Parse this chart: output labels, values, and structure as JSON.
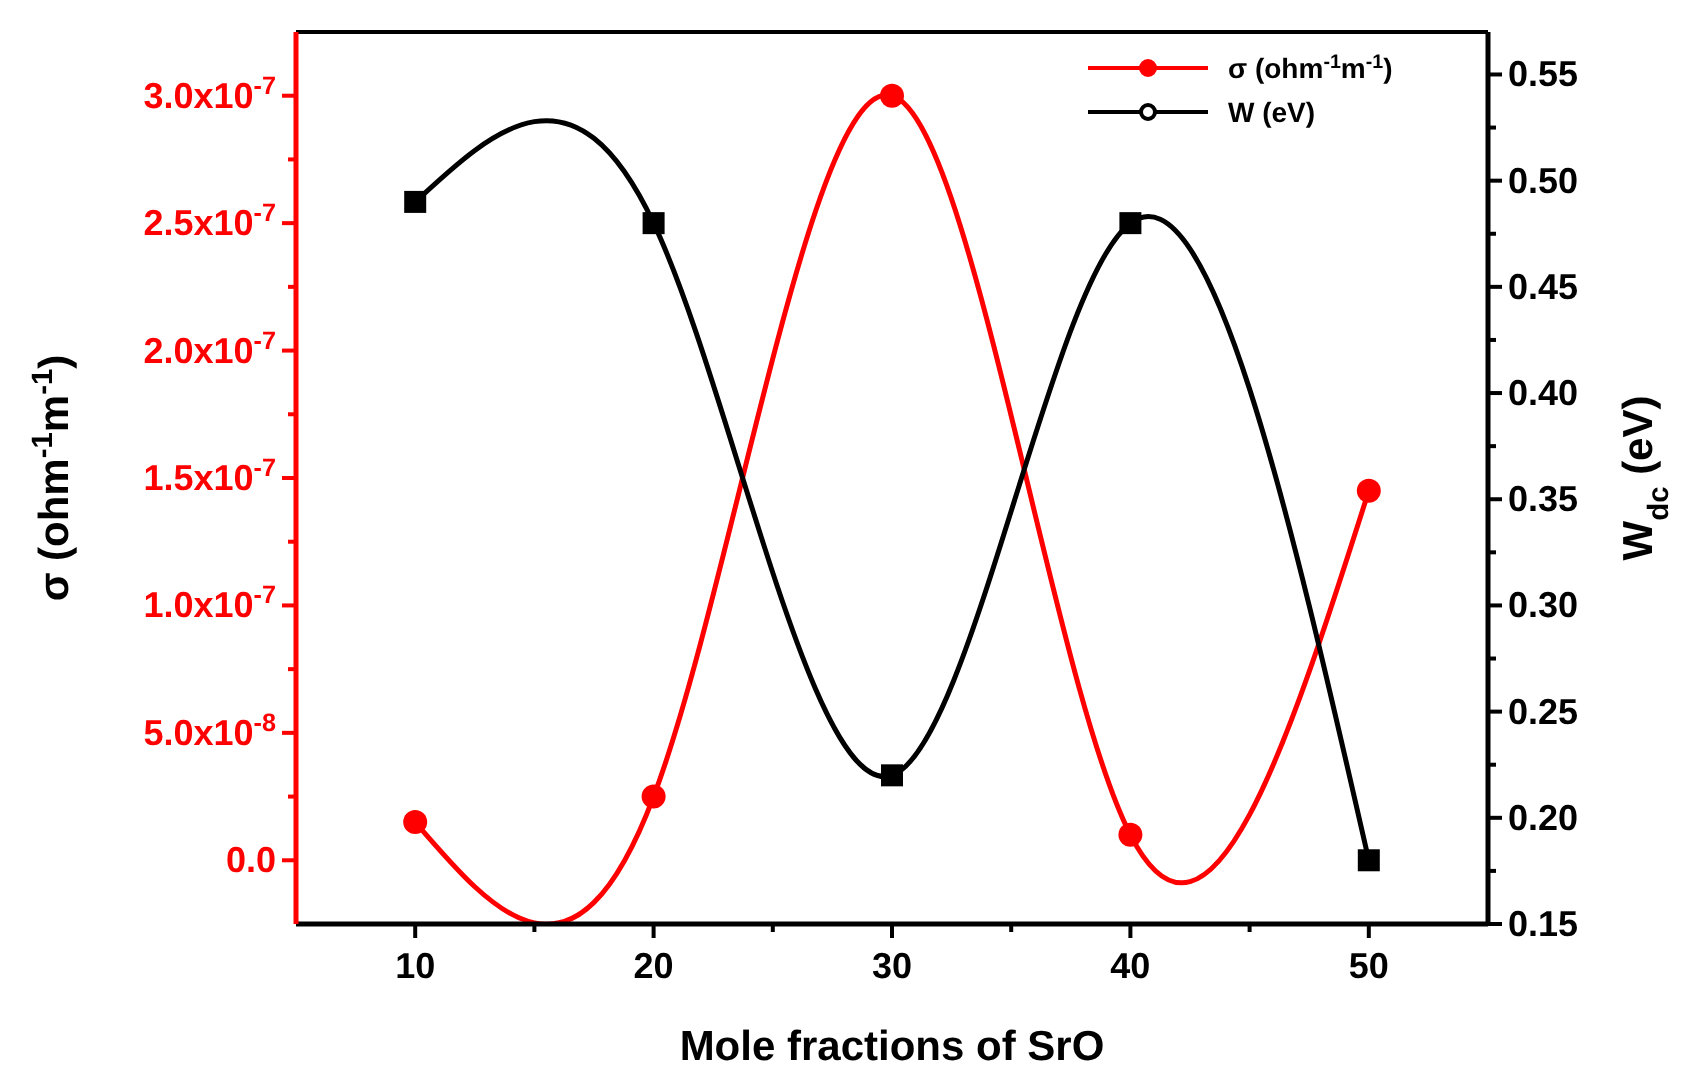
{
  "chart_data": {
    "type": "line",
    "xlabel": "Mole fractions of SrO",
    "ylabel": "σ (ohm$^{-1}$m$^{-1}$)",
    "y2label": "W$_{dc}$ (eV)",
    "x": [
      10,
      20,
      30,
      40,
      50
    ],
    "xlim": [
      5,
      55
    ],
    "xticks": [
      10,
      {
        "value": 15,
        "label": null
      },
      20,
      {
        "value": 25,
        "label": null
      },
      30,
      {
        "value": 35,
        "label": null
      },
      40,
      {
        "value": 45,
        "label": null
      },
      50
    ],
    "ylim": [
      -2.5e-08,
      3.25e-07
    ],
    "yticks": [
      {
        "value": 0,
        "label": "0.0"
      },
      {
        "value": 2.5e-08,
        "label": null
      },
      {
        "value": 5e-08,
        "label": "5.0x10$^{-8}$"
      },
      {
        "value": 7.5e-08,
        "label": null
      },
      {
        "value": 1e-07,
        "label": "1.0x10$^{-7}$"
      },
      {
        "value": 1.25e-07,
        "label": null
      },
      {
        "value": 1.5e-07,
        "label": "1.5x10$^{-7}$"
      },
      {
        "value": 1.75e-07,
        "label": null
      },
      {
        "value": 2e-07,
        "label": "2.0x10$^{-7}$"
      },
      {
        "value": 2.25e-07,
        "label": null
      },
      {
        "value": 2.5e-07,
        "label": "2.5x10$^{-7}$"
      },
      {
        "value": 2.75e-07,
        "label": null
      },
      {
        "value": 3e-07,
        "label": "3.0x10$^{-7}$"
      }
    ],
    "y2lim": [
      0.15,
      0.57
    ],
    "y2ticks": [
      {
        "value": 0.15,
        "label": "0.15"
      },
      {
        "value": 0.175,
        "label": null
      },
      {
        "value": 0.2,
        "label": "0.20"
      },
      {
        "value": 0.225,
        "label": null
      },
      {
        "value": 0.25,
        "label": "0.25"
      },
      {
        "value": 0.275,
        "label": null
      },
      {
        "value": 0.3,
        "label": "0.30"
      },
      {
        "value": 0.325,
        "label": null
      },
      {
        "value": 0.35,
        "label": "0.35"
      },
      {
        "value": 0.375,
        "label": null
      },
      {
        "value": 0.4,
        "label": "0.40"
      },
      {
        "value": 0.425,
        "label": null
      },
      {
        "value": 0.45,
        "label": "0.45"
      },
      {
        "value": 0.475,
        "label": null
      },
      {
        "value": 0.5,
        "label": "0.50"
      },
      {
        "value": 0.525,
        "label": null
      },
      {
        "value": 0.55,
        "label": "0.55"
      }
    ],
    "grid": false,
    "legend": "top right",
    "line_style": "solid",
    "series": [
      {
        "name": "σ (ohm$^{-1}$m$^{-1}$)",
        "color": "#ff0000",
        "marker": "circle",
        "values": [
          1.5e-08,
          2.5e-08,
          3e-07,
          1e-08,
          1.45e-07
        ]
      },
      {
        "name": "W (eV)",
        "color": "#000000",
        "marker": "square",
        "axis": "y2",
        "values": [
          0.49,
          0.48,
          0.22,
          0.48,
          0.18
        ]
      }
    ]
  }
}
